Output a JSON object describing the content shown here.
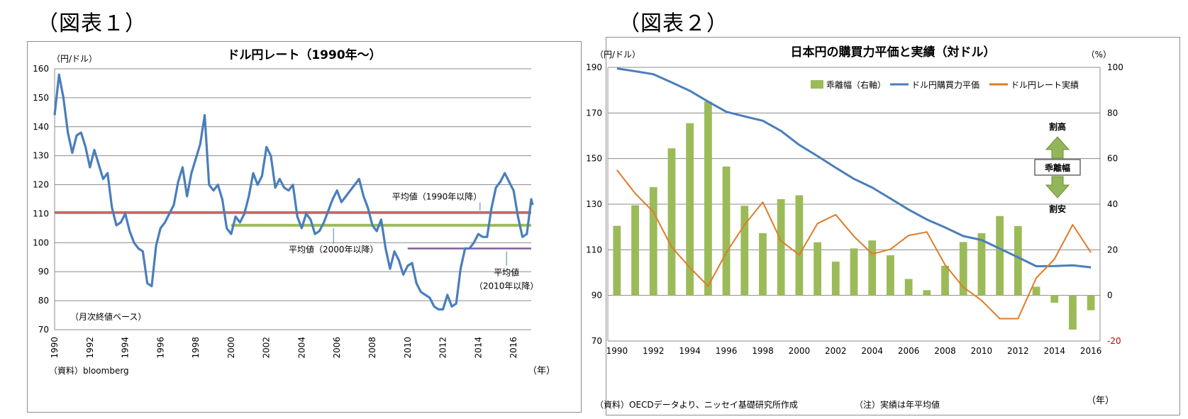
{
  "figure_labels": {
    "fig1": "（図表１）",
    "fig2": "（図表２）"
  },
  "chart_data": [
    {
      "type": "line",
      "title": "ドル円レート（1990年～）",
      "ylabel": "（円/ドル）",
      "xlabel": "（年）",
      "ylim": [
        70,
        160
      ],
      "yticks": [
        "70",
        "80",
        "90",
        "100",
        "110",
        "120",
        "130",
        "140",
        "150",
        "160"
      ],
      "xlim": [
        1990,
        2017
      ],
      "xticks": [
        "1990",
        "1992",
        "1994",
        "1996",
        "1998",
        "2000",
        "2002",
        "2004",
        "2006",
        "2008",
        "2010",
        "2012",
        "2014",
        "2016"
      ],
      "grid": true,
      "note": "（月次終値ベース）",
      "source": "（資料）bloomberg",
      "series_color": "#4a7ebb",
      "series": [
        {
          "points": [
            [
              1990.0,
              144
            ],
            [
              1990.25,
              158
            ],
            [
              1990.5,
              150
            ],
            [
              1990.75,
              138
            ],
            [
              1991.0,
              131
            ],
            [
              1991.25,
              137
            ],
            [
              1991.5,
              138
            ],
            [
              1991.75,
              133
            ],
            [
              1992.0,
              126
            ],
            [
              1992.25,
              132
            ],
            [
              1992.5,
              127
            ],
            [
              1992.75,
              122
            ],
            [
              1993.0,
              124
            ],
            [
              1993.25,
              112
            ],
            [
              1993.5,
              106
            ],
            [
              1993.75,
              107
            ],
            [
              1994.0,
              110
            ],
            [
              1994.25,
              104
            ],
            [
              1994.5,
              100
            ],
            [
              1994.75,
              98
            ],
            [
              1995.0,
              97
            ],
            [
              1995.25,
              86
            ],
            [
              1995.5,
              85
            ],
            [
              1995.75,
              99
            ],
            [
              1996.0,
              105
            ],
            [
              1996.25,
              107
            ],
            [
              1996.5,
              110
            ],
            [
              1996.75,
              113
            ],
            [
              1997.0,
              121
            ],
            [
              1997.25,
              126
            ],
            [
              1997.5,
              116
            ],
            [
              1997.75,
              124
            ],
            [
              1998.0,
              129
            ],
            [
              1998.25,
              134
            ],
            [
              1998.5,
              144
            ],
            [
              1998.75,
              120
            ],
            [
              1999.0,
              118
            ],
            [
              1999.25,
              120
            ],
            [
              1999.5,
              115
            ],
            [
              1999.75,
              105
            ],
            [
              2000.0,
              103
            ],
            [
              2000.25,
              109
            ],
            [
              2000.5,
              107
            ],
            [
              2000.75,
              110
            ],
            [
              2001.0,
              116
            ],
            [
              2001.25,
              124
            ],
            [
              2001.5,
              120
            ],
            [
              2001.75,
              123
            ],
            [
              2002.0,
              133
            ],
            [
              2002.25,
              130
            ],
            [
              2002.5,
              119
            ],
            [
              2002.75,
              122
            ],
            [
              2003.0,
              119
            ],
            [
              2003.25,
              118
            ],
            [
              2003.5,
              120
            ],
            [
              2003.75,
              109
            ],
            [
              2004.0,
              105
            ],
            [
              2004.25,
              110
            ],
            [
              2004.5,
              108
            ],
            [
              2004.75,
              103
            ],
            [
              2005.0,
              104
            ],
            [
              2005.25,
              107
            ],
            [
              2005.5,
              111
            ],
            [
              2005.75,
              115
            ],
            [
              2006.0,
              118
            ],
            [
              2006.25,
              114
            ],
            [
              2006.5,
              116
            ],
            [
              2006.75,
              118
            ],
            [
              2007.0,
              120
            ],
            [
              2007.25,
              122
            ],
            [
              2007.5,
              116
            ],
            [
              2007.75,
              112
            ],
            [
              2008.0,
              106
            ],
            [
              2008.25,
              104
            ],
            [
              2008.5,
              108
            ],
            [
              2008.75,
              98
            ],
            [
              2009.0,
              91
            ],
            [
              2009.25,
              97
            ],
            [
              2009.5,
              94
            ],
            [
              2009.75,
              89
            ],
            [
              2010.0,
              92
            ],
            [
              2010.25,
              93
            ],
            [
              2010.5,
              86
            ],
            [
              2010.75,
              83
            ],
            [
              2011.0,
              82
            ],
            [
              2011.25,
              81
            ],
            [
              2011.5,
              78
            ],
            [
              2011.75,
              77
            ],
            [
              2012.0,
              77
            ],
            [
              2012.25,
              82
            ],
            [
              2012.5,
              78
            ],
            [
              2012.75,
              79
            ],
            [
              2013.0,
              91
            ],
            [
              2013.25,
              98
            ],
            [
              2013.5,
              98
            ],
            [
              2013.75,
              100
            ],
            [
              2014.0,
              103
            ],
            [
              2014.25,
              102
            ],
            [
              2014.5,
              102
            ],
            [
              2014.75,
              112
            ],
            [
              2015.0,
              119
            ],
            [
              2015.25,
              121
            ],
            [
              2015.5,
              124
            ],
            [
              2015.75,
              121
            ],
            [
              2016.0,
              118
            ],
            [
              2016.25,
              109
            ],
            [
              2016.5,
              102
            ],
            [
              2016.75,
              103
            ],
            [
              2017.0,
              115
            ],
            [
              2017.08,
              113
            ]
          ]
        }
      ],
      "averages": [
        {
          "label": "平均値（1990年以降）",
          "value": 110.5,
          "from": 1990,
          "to": 2017.0,
          "color": "#c0504d"
        },
        {
          "label": "平均値（2000年以降）",
          "value": 106,
          "from": 2000,
          "to": 2017.0,
          "color": "#9bbb59"
        },
        {
          "label": "平均値",
          "label2": "（2010年以降）",
          "value": 98,
          "from": 2010,
          "to": 2017.0,
          "color": "#7f5f9f"
        }
      ]
    },
    {
      "type": "bar+line",
      "title": "日本円の購買力平価と実績（対ドル）",
      "ylabel_left": "（円/ドル）",
      "ylabel_right": "（%）",
      "xlabel": "（年）",
      "ylim_left": [
        70,
        190
      ],
      "yticks_left": [
        "70",
        "90",
        "110",
        "130",
        "150",
        "170",
        "190"
      ],
      "ylim_right": [
        -20,
        100
      ],
      "yticks_right": [
        "-20",
        "0",
        "20",
        "40",
        "60",
        "80",
        "100"
      ],
      "categories": [
        "1990",
        "1991",
        "1992",
        "1993",
        "1994",
        "1995",
        "1996",
        "1997",
        "1998",
        "1999",
        "2000",
        "2001",
        "2002",
        "2003",
        "2004",
        "2005",
        "2006",
        "2007",
        "2008",
        "2009",
        "2010",
        "2011",
        "2012",
        "2013",
        "2014",
        "2015",
        "2016"
      ],
      "xtick_labels": [
        "1990",
        "1992",
        "1994",
        "1996",
        "1998",
        "2000",
        "2002",
        "2004",
        "2006",
        "2008",
        "2010",
        "2012",
        "2014",
        "2016"
      ],
      "series": [
        {
          "name": "乖離幅（右軸）",
          "type": "bar",
          "axis": "right",
          "color": "#9bbb59",
          "values": [
            30.5,
            39.5,
            47.5,
            64.5,
            75.5,
            85,
            56.5,
            39.3,
            27.3,
            42.2,
            43.9,
            23.3,
            14.8,
            20.6,
            24.1,
            17.6,
            7.2,
            2.3,
            13,
            23.4,
            27.3,
            34.8,
            30.4,
            3.8,
            -3.2,
            -15,
            -6.5
          ]
        },
        {
          "name": "ドル円購買力平価",
          "type": "line",
          "axis": "left",
          "color": "#4a7ebb",
          "values": [
            189.5,
            188.3,
            187,
            183.4,
            179.7,
            175,
            170.5,
            168.5,
            166.6,
            162.1,
            156,
            151.1,
            146,
            141.1,
            137.3,
            132.5,
            127.6,
            123.3,
            119.8,
            116,
            114.3,
            110.5,
            106.7,
            102.8,
            102.9,
            103.2,
            102.3
          ]
        },
        {
          "name": "ドル円レート実績",
          "type": "line",
          "axis": "left",
          "color": "#e07b29",
          "values": [
            145,
            134.7,
            126.6,
            111.2,
            102.2,
            94.1,
            108.8,
            121,
            130.9,
            113.9,
            107.8,
            121.5,
            125.4,
            115.9,
            108.2,
            110.2,
            116.3,
            117.8,
            103.4,
            93.6,
            87.8,
            79.8,
            79.8,
            97.6,
            105.9,
            121,
            108.8
          ]
        }
      ],
      "legend_position": "top-right",
      "annotation": {
        "top": "割高",
        "middle": "乖離幅",
        "bottom": "割安"
      },
      "source": "（資料）OECDデータより、ニッセイ基礎研究所作成",
      "note": "（注）実績は年平均値"
    }
  ]
}
